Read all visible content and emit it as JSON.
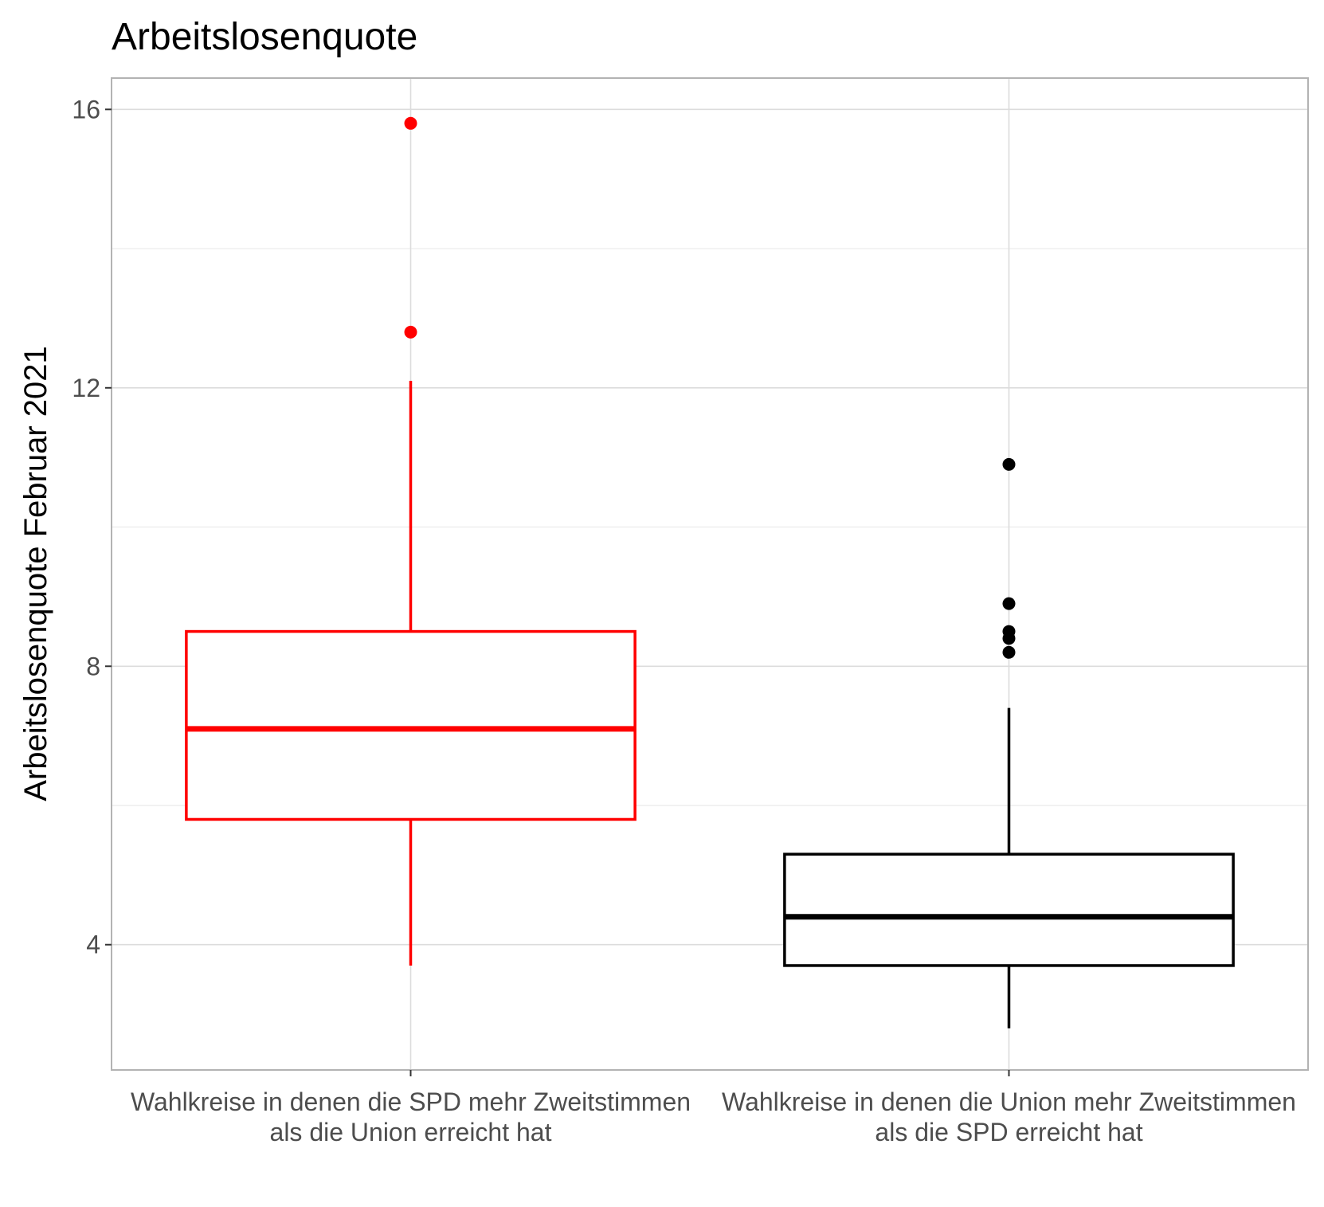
{
  "chart_data": {
    "type": "boxplot",
    "title": "Arbeitslosenquote",
    "xlabel": "",
    "ylabel": "Arbeitslosenquote Februar 2021",
    "ylim": [
      2.2,
      16.45
    ],
    "yticks": [
      4,
      8,
      12,
      16
    ],
    "grid": true,
    "legend": "none",
    "categories": [
      [
        "Wahlkreise in denen die SPD mehr Zweitstimmen",
        "als die Union erreicht hat"
      ],
      [
        "Wahlkreise in denen die Union mehr Zweitstimmen",
        "als die SPD erreicht hat"
      ]
    ],
    "series": [
      {
        "color": "#ff0000",
        "whisker_low": 3.7,
        "q1": 5.8,
        "median": 7.1,
        "q3": 8.5,
        "whisker_high": 12.1,
        "outliers": [
          15.8,
          12.8
        ]
      },
      {
        "color": "#000000",
        "whisker_low": 2.8,
        "q1": 3.7,
        "median": 4.4,
        "q3": 5.3,
        "whisker_high": 7.4,
        "outliers": [
          10.9,
          8.9,
          8.5,
          8.4,
          8.2
        ]
      }
    ]
  }
}
